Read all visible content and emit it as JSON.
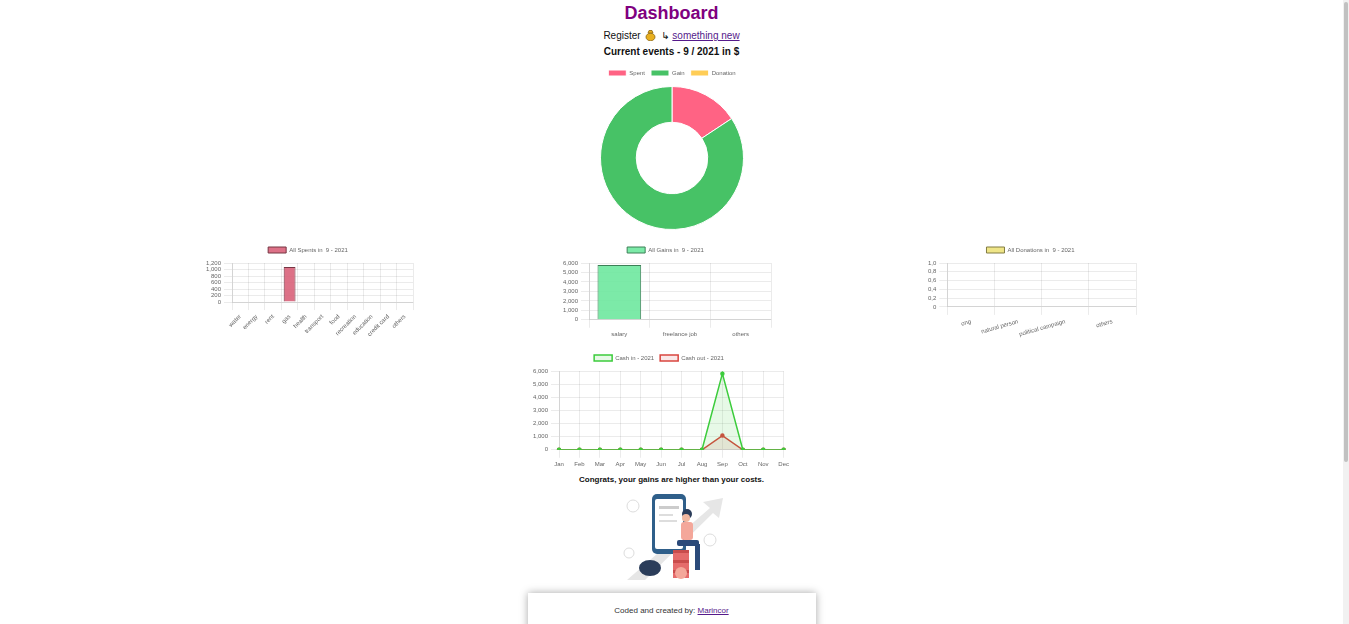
{
  "header": {
    "title": "Dashboard",
    "register_text": "Register",
    "register_arrow": "↳",
    "register_link": "something new",
    "subtitle": "Current events - 9 / 2021 in $"
  },
  "chart_data": [
    {
      "type": "doughnut",
      "categories": [
        "Spent",
        "Gain",
        "Donation"
      ],
      "values": [
        1080,
        5800,
        0
      ],
      "colors": [
        "#ff6384",
        "#47c266",
        "#ffcd56"
      ],
      "legend": "top"
    },
    {
      "type": "bar",
      "categories": [
        "water",
        "energy",
        "rent",
        "gas",
        "health",
        "transport",
        "food",
        "recreation",
        "education",
        "credit card",
        "others"
      ],
      "series": [
        {
          "name": "All Spents in  9 - 2021",
          "color": "#d9627a",
          "values": [
            0,
            0,
            0,
            1080,
            0,
            0,
            0,
            0,
            0,
            0,
            0
          ]
        }
      ],
      "ylim": [
        0,
        1200
      ],
      "yticks": [
        0,
        200,
        400,
        600,
        800,
        {
          "value": 1000,
          "label": "1,000"
        },
        {
          "value": 1200,
          "label": "1,200"
        }
      ],
      "grid": true,
      "legend": "top"
    },
    {
      "type": "bar",
      "categories": [
        "salary",
        "freelance job",
        "others"
      ],
      "series": [
        {
          "name": "All Gains in  9 - 2021",
          "color": "#6ee89e",
          "values": [
            5800,
            0,
            0
          ]
        }
      ],
      "ylim": [
        0,
        6000
      ],
      "yticks": [
        0,
        {
          "value": 1000,
          "label": "1,000"
        },
        {
          "value": 2000,
          "label": "2,000"
        },
        {
          "value": 3000,
          "label": "3,000"
        },
        {
          "value": 4000,
          "label": "4,000"
        },
        {
          "value": 5000,
          "label": "5,000"
        },
        {
          "value": 6000,
          "label": "6,000"
        }
      ],
      "grid": true,
      "legend": "top"
    },
    {
      "type": "bar",
      "categories": [
        "ong",
        "natural person",
        "political campaign",
        "others"
      ],
      "series": [
        {
          "name": "All Donations in  9 - 2021",
          "color": "#ede27a",
          "values": [
            0,
            0,
            0,
            0
          ]
        }
      ],
      "ylim": [
        0,
        1
      ],
      "yticks": [
        0,
        {
          "value": 0.2,
          "label": "0,2"
        },
        {
          "value": 0.4,
          "label": "0,4"
        },
        {
          "value": 0.6,
          "label": "0,6"
        },
        {
          "value": 0.8,
          "label": "0,8"
        },
        {
          "value": 1,
          "label": "1,0"
        }
      ],
      "grid": true,
      "legend": "top"
    },
    {
      "type": "line",
      "categories": [
        "Jan",
        "Feb",
        "Mar",
        "Apr",
        "May",
        "Jun",
        "Jul",
        "Aug",
        "Sep",
        "Oct",
        "Nov",
        "Dec"
      ],
      "series": [
        {
          "name": "Cash in - 2021",
          "color": "#3ccc3c",
          "values": [
            0,
            0,
            0,
            0,
            0,
            0,
            0,
            0,
            5800,
            0,
            0,
            0
          ]
        },
        {
          "name": "Cash out - 2021",
          "color": "#d9453f",
          "values": [
            0,
            0,
            0,
            0,
            0,
            0,
            0,
            0,
            1080,
            0,
            0,
            0
          ]
        }
      ],
      "ylim": [
        0,
        6000
      ],
      "yticks": [
        0,
        {
          "value": 1000,
          "label": "1,000"
        },
        {
          "value": 2000,
          "label": "2,000"
        },
        {
          "value": 3000,
          "label": "3,000"
        },
        {
          "value": 4000,
          "label": "4,000"
        },
        {
          "value": 5000,
          "label": "5,000"
        },
        {
          "value": 6000,
          "label": "6,000"
        }
      ],
      "grid": true,
      "legend": "top"
    }
  ],
  "message": "Congrats, your gains are higher than your costs.",
  "footer": {
    "text": "Coded and created by:",
    "link": "Marincor"
  }
}
